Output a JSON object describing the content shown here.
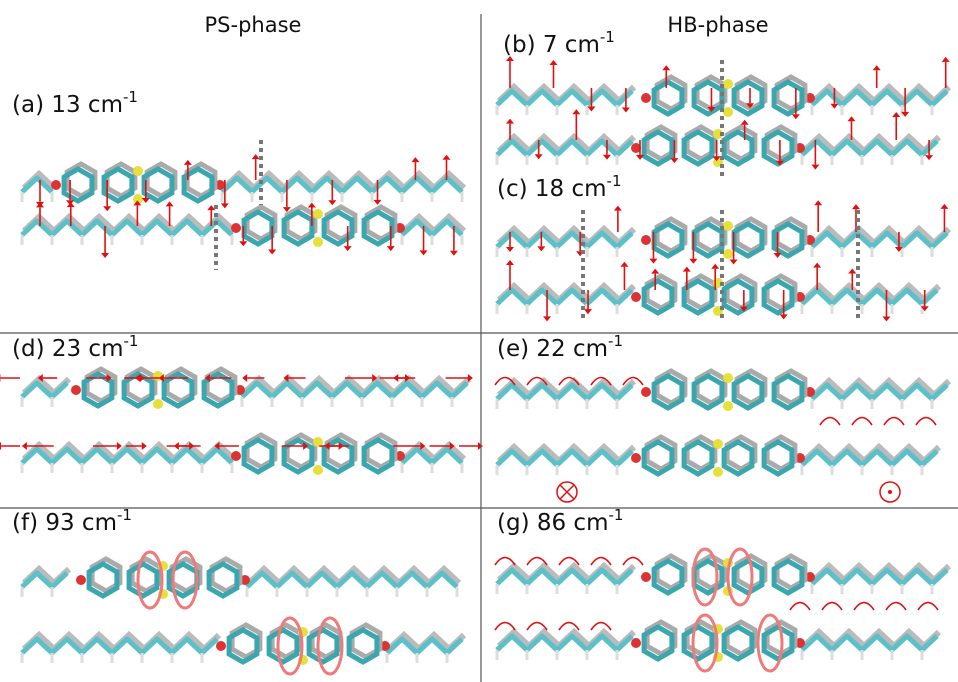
{
  "headers": {
    "left": "PS-phase",
    "right": "HB-phase"
  },
  "panels": [
    {
      "label": "(a) 13 cm",
      "sup": "-1"
    },
    {
      "label": "(b) 7 cm",
      "sup": "-1"
    },
    {
      "label": "(c) 18 cm",
      "sup": "-1"
    },
    {
      "label": "(d) 23 cm",
      "sup": "-1"
    },
    {
      "label": "(e) 22 cm",
      "sup": "-1"
    },
    {
      "label": "(f) 93 cm",
      "sup": "-1"
    },
    {
      "label": "(g) 86 cm",
      "sup": "-1"
    }
  ]
}
